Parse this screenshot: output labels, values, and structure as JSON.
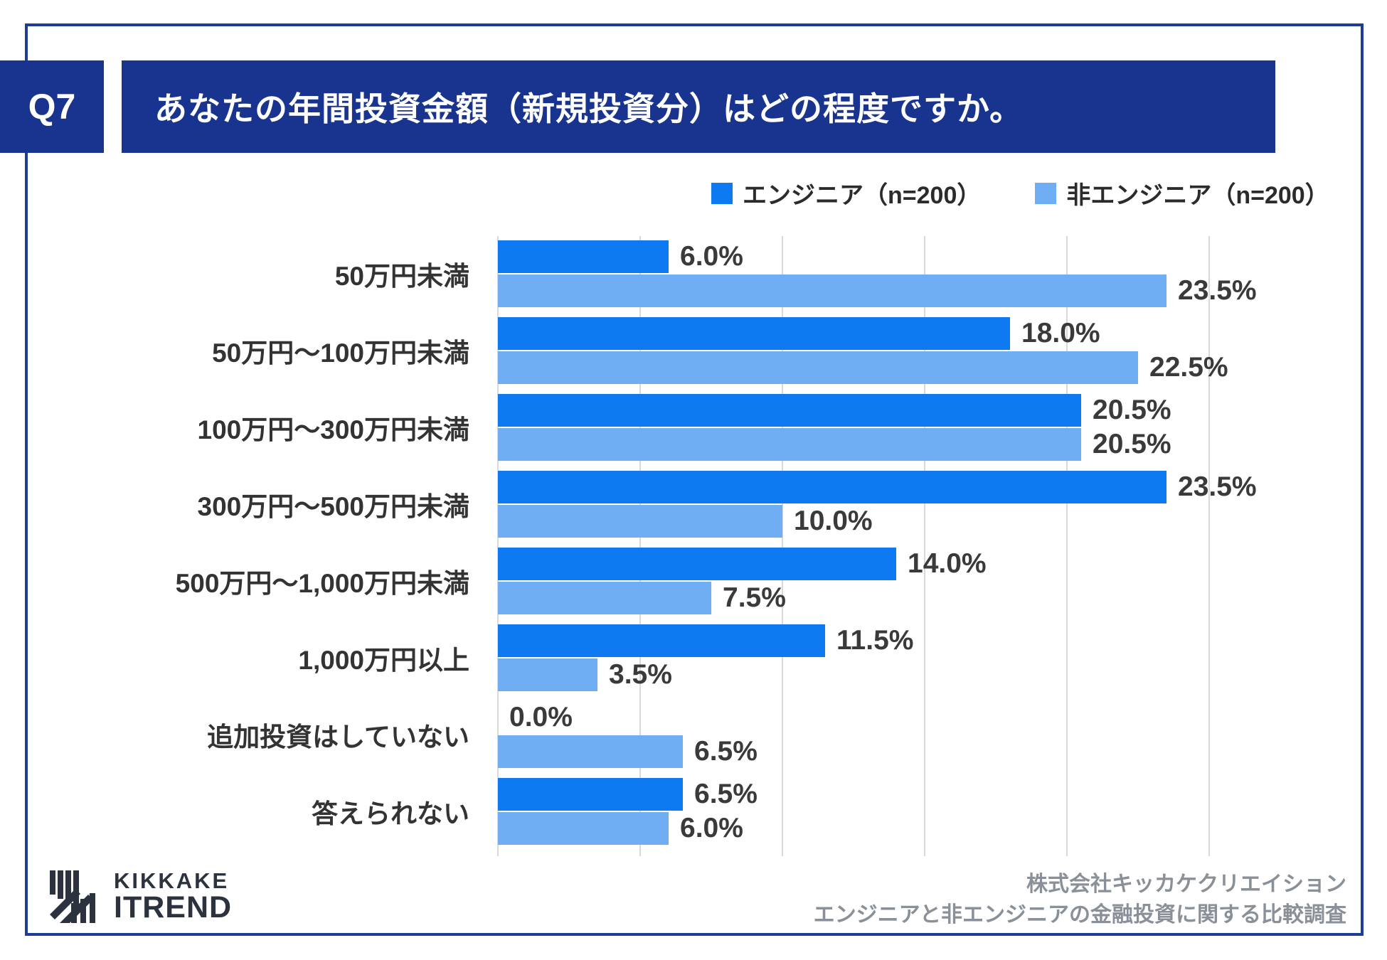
{
  "question": {
    "number": "Q7",
    "title": "あなたの年間投資金額（新規投資分）はどの程度ですか。"
  },
  "legend": [
    {
      "label": "エンジニア（n=200）",
      "color": "#0E7AF2"
    },
    {
      "label": "非エンジニア（n=200）",
      "color": "#6FAEF3"
    }
  ],
  "chart_data": {
    "type": "bar",
    "orientation": "horizontal",
    "title": "あなたの年間投資金額（新規投資分）はどの程度ですか。",
    "categories": [
      "50万円未満",
      "50万円〜100万円未満",
      "100万円〜300万円未満",
      "300万円〜500万円未満",
      "500万円〜1,000万円未満",
      "1,000万円以上",
      "追加投資はしていない",
      "答えられない"
    ],
    "series": [
      {
        "name": "エンジニア（n=200）",
        "color": "#0E7AF2",
        "values": [
          6.0,
          18.0,
          20.5,
          23.5,
          14.0,
          11.5,
          0.0,
          6.5
        ]
      },
      {
        "name": "非エンジニア（n=200）",
        "color": "#6FAEF3",
        "values": [
          23.5,
          22.5,
          20.5,
          10.0,
          7.5,
          3.5,
          6.5,
          6.0
        ]
      }
    ],
    "value_suffix": "%",
    "value_decimals": 1,
    "xlim": [
      0,
      25
    ],
    "gridline_step": 5,
    "grid": "vertical",
    "legend_position": "top-right"
  },
  "footer": {
    "logo_line1": "KIKKAKE",
    "logo_line2": "ITREND",
    "source_line1": "株式会社キッカケクリエイション",
    "source_line2": "エンジニアと非エンジニアの金融投資に関する比較調査"
  },
  "colors": {
    "navy": "#19348F",
    "border": "#1E3D96",
    "engineer": "#0E7AF2",
    "non_engineer": "#6FAEF3",
    "gridline": "#D9D9D9",
    "value_label": "#3A3A3A",
    "category_label": "#333333",
    "footer_text": "#8A9098",
    "logo": "#2C333E"
  }
}
